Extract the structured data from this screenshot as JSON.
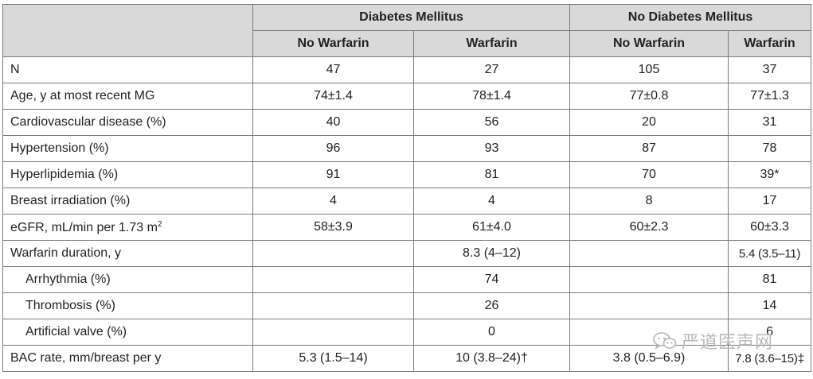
{
  "header": {
    "group_dm": "Diabetes Mellitus",
    "group_nodm": "No Diabetes Mellitus",
    "sub": [
      "No Warfarin",
      "Warfarin",
      "No Warfarin",
      "Warfarin"
    ]
  },
  "rows": [
    {
      "label": "N",
      "values": [
        "47",
        "27",
        "105",
        "37"
      ]
    },
    {
      "label": "Age, y at most recent MG",
      "values": [
        "74±1.4",
        "78±1.4",
        "77±0.8",
        "77±1.3"
      ]
    },
    {
      "label": "Cardiovascular disease (%)",
      "values": [
        "40",
        "56",
        "20",
        "31"
      ]
    },
    {
      "label": "Hypertension (%)",
      "values": [
        "96",
        "93",
        "87",
        "78"
      ]
    },
    {
      "label": "Hyperlipidemia (%)",
      "values": [
        "91",
        "81",
        "70",
        "39*"
      ]
    },
    {
      "label": "Breast irradiation (%)",
      "values": [
        "4",
        "4",
        "8",
        "17"
      ]
    },
    {
      "label": "eGFR, mL/min per 1.73 m",
      "label_sup": "2",
      "values": [
        "58±3.9",
        "61±4.0",
        "60±2.3",
        "60±3.3"
      ]
    },
    {
      "label": "Warfarin duration, y",
      "values": [
        "",
        "8.3 (4–12)",
        "",
        "5.4 (3.5–11)"
      ]
    },
    {
      "label": "Arrhythmia (%)",
      "values": [
        "",
        "74",
        "",
        "81"
      ]
    },
    {
      "label": "Thrombosis (%)",
      "values": [
        "",
        "26",
        "",
        "14"
      ]
    },
    {
      "label": "Artificial valve (%)",
      "values": [
        "",
        "0",
        "",
        "6"
      ]
    },
    {
      "label": "BAC rate, mm/breast per y",
      "values": [
        "5.3 (1.5–14)",
        "10 (3.8–24)†",
        "3.8 (0.5–6.9)",
        "7.8 (3.6–15)‡"
      ]
    }
  ],
  "watermark": {
    "icon": "wechat-icon",
    "text": "严道医声网"
  }
}
